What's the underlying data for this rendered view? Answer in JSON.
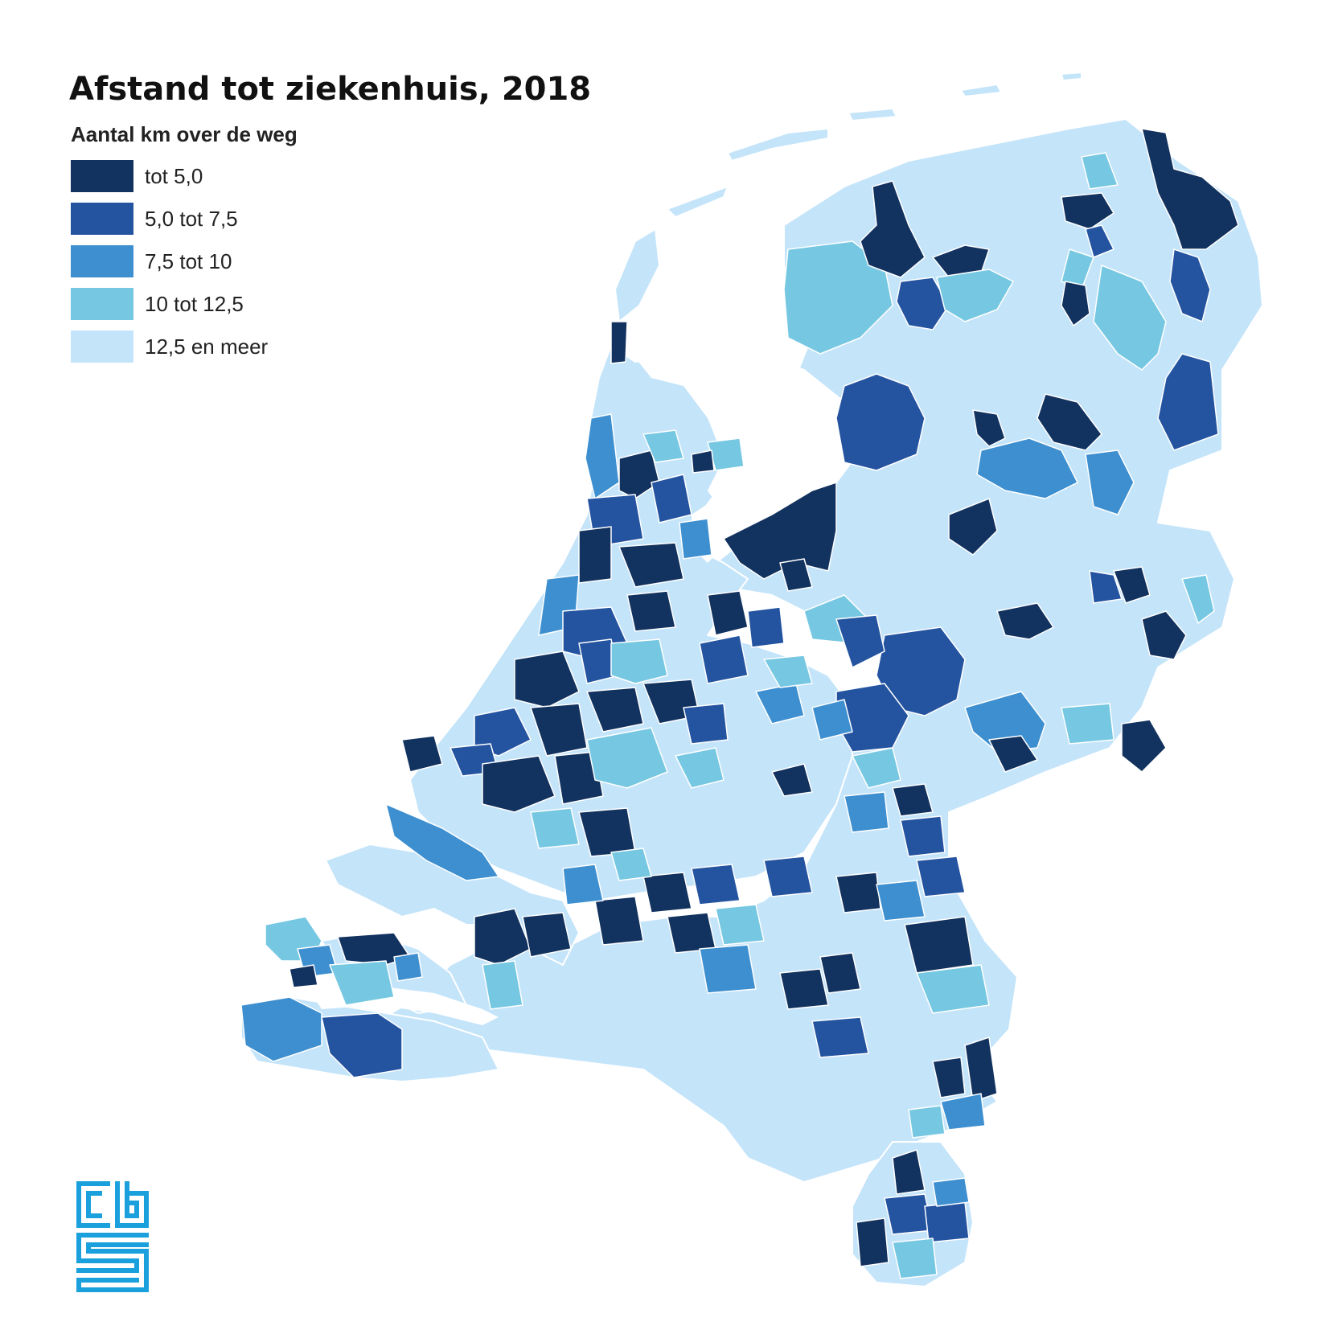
{
  "map": {
    "title": "Afstand tot ziekenhuis, 2018",
    "subtitle": "Aantal km over de weg",
    "legend": [
      {
        "label": "tot 5,0",
        "color": "#12325f"
      },
      {
        "label": "5,0 tot 7,5",
        "color": "#2454a0"
      },
      {
        "label": "7,5 tot 10",
        "color": "#3d8fd0"
      },
      {
        "label": "10 tot 12,5",
        "color": "#76c8e2"
      },
      {
        "label": "12,5 en meer",
        "color": "#c4e4fa"
      }
    ],
    "border_color": "#ffffff",
    "region": "Nederland"
  },
  "logo": {
    "name": "cbs-logo",
    "color": "#1aa0dc"
  }
}
